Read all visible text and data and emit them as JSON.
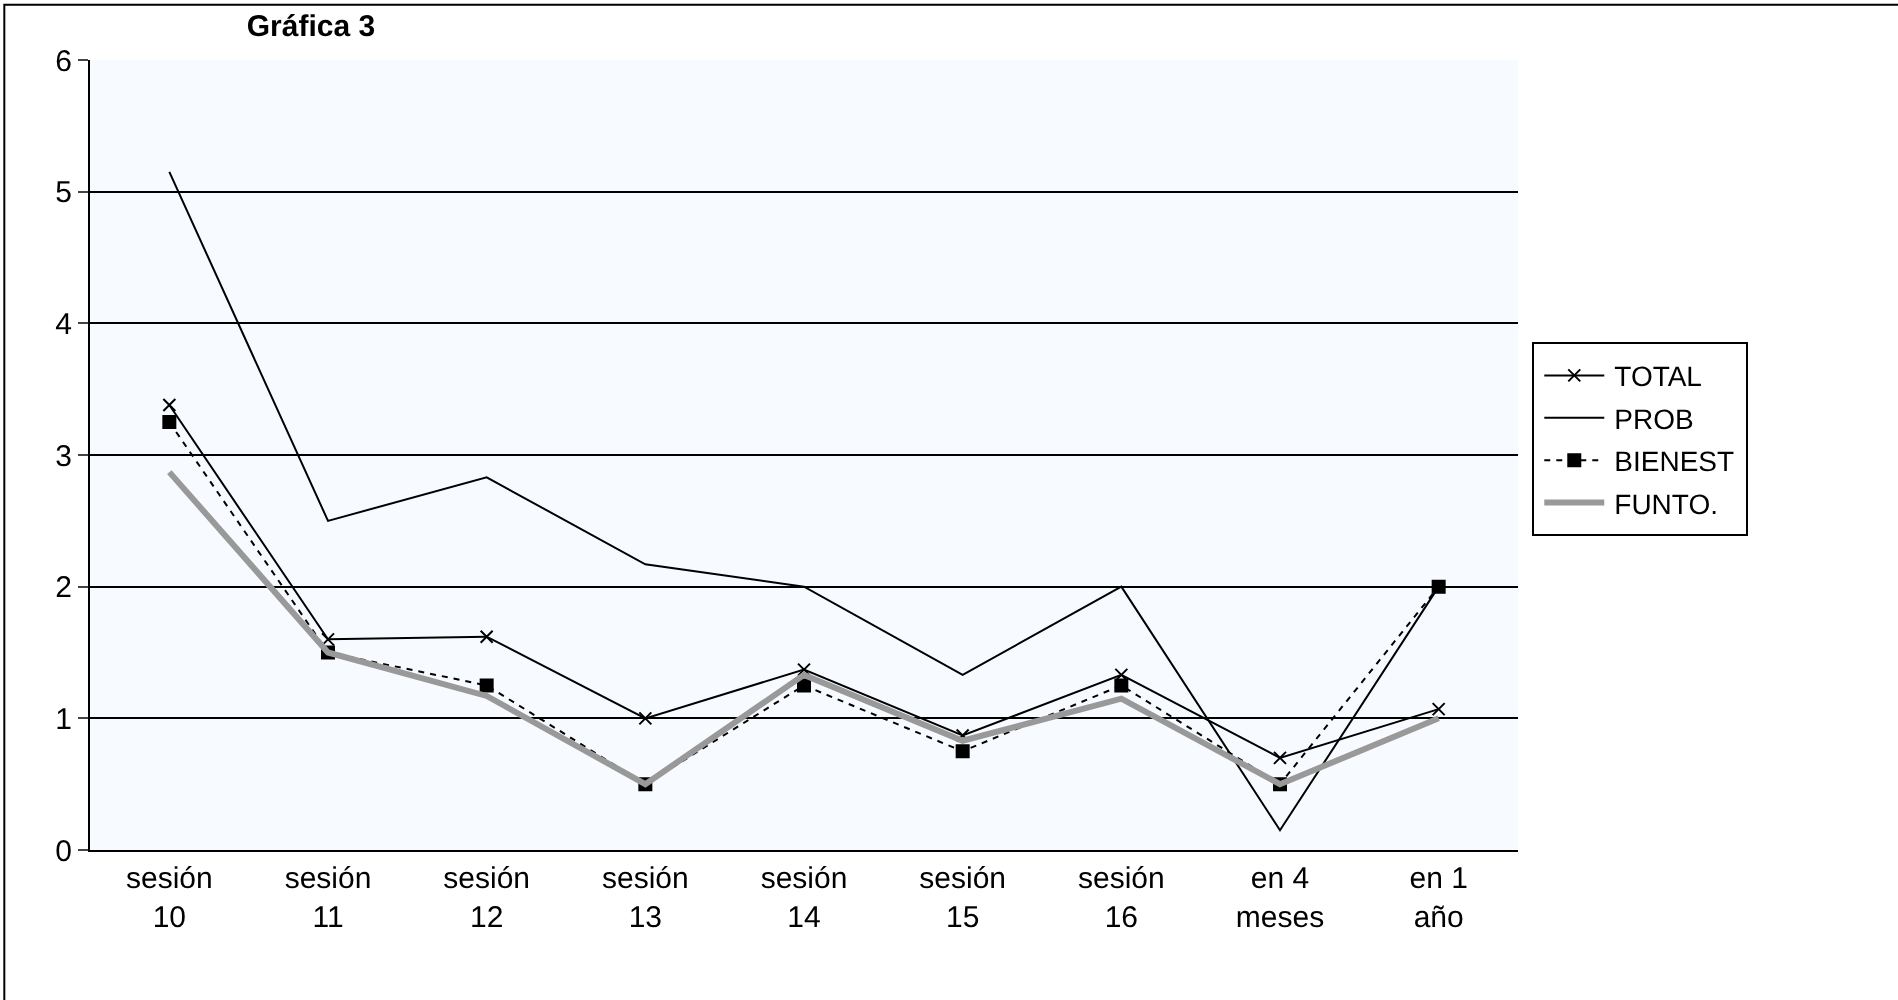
{
  "chart_data": {
    "type": "line",
    "title": "Gráfica 3",
    "categories": [
      "sesión 10",
      "sesión 11",
      "sesión 12",
      "sesión 13",
      "sesión 14",
      "sesión 15",
      "sesión 16",
      "en 4 meses",
      "en 1 año"
    ],
    "series": [
      {
        "name": "TOTAL",
        "color": "#000000",
        "marker": "cross",
        "line_style": "solid",
        "values": [
          3.38,
          1.6,
          1.62,
          1.0,
          1.37,
          0.87,
          1.33,
          0.7,
          1.07
        ]
      },
      {
        "name": "PROB",
        "color": "#000000",
        "marker": "none",
        "line_style": "solid",
        "values": [
          5.15,
          2.5,
          2.83,
          2.17,
          2.0,
          1.33,
          2.0,
          0.15,
          2.0
        ]
      },
      {
        "name": "BIENEST",
        "color": "#000000",
        "marker": "square",
        "line_style": "dotted",
        "values": [
          3.25,
          1.5,
          1.25,
          0.5,
          1.25,
          0.75,
          1.25,
          0.5,
          2.0
        ]
      },
      {
        "name": "FUNTO.",
        "color": "#999999",
        "marker": "none",
        "line_style": "solid",
        "values": [
          2.87,
          1.5,
          1.17,
          0.5,
          1.33,
          0.83,
          1.15,
          0.5,
          1.0
        ]
      }
    ],
    "ylim": [
      0,
      6
    ],
    "yticks": [
      0,
      1,
      2,
      3,
      4,
      5,
      6
    ],
    "grid": "y",
    "legend": "right"
  }
}
